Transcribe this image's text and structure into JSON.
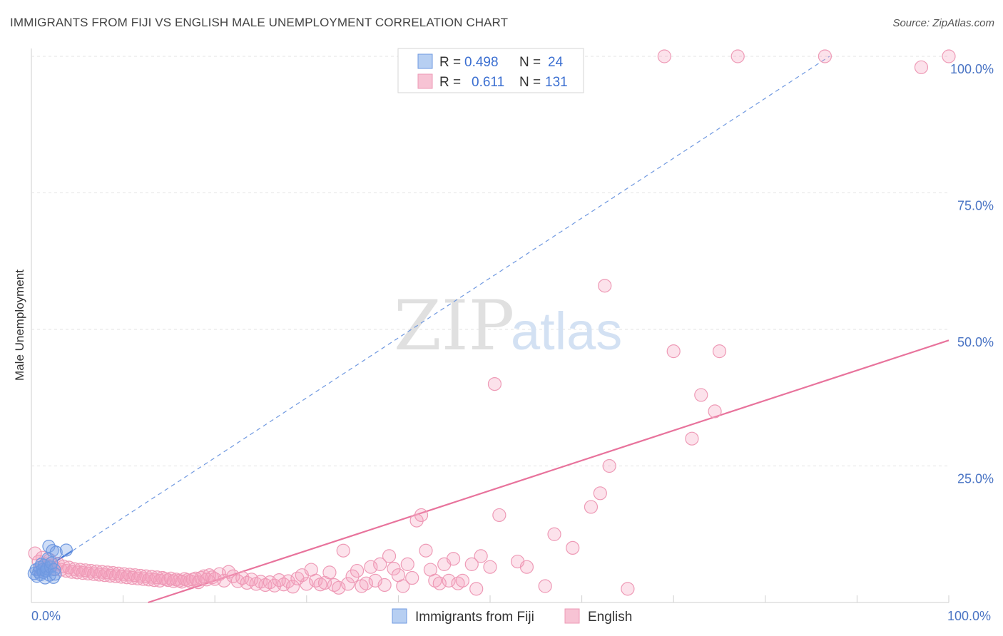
{
  "title": "IMMIGRANTS FROM FIJI VS ENGLISH MALE UNEMPLOYMENT CORRELATION CHART",
  "source": "Source: ZipAtlas.com",
  "watermark": {
    "zip": "ZIP",
    "atlas": "atlas"
  },
  "colors": {
    "fiji": "#6f98e0",
    "english": "#e8739c",
    "accent": "#4a74c4"
  },
  "legend": {
    "r_label": "R =",
    "n_label": "N =",
    "series": [
      {
        "r": "0.498",
        "n": "24"
      },
      {
        "r": "0.611",
        "n": "131"
      }
    ]
  },
  "chart_data": {
    "type": "scatter",
    "title": "IMMIGRANTS FROM FIJI VS ENGLISH MALE UNEMPLOYMENT CORRELATION CHART",
    "xlabel": "",
    "ylabel": "Male Unemployment",
    "xlim": [
      0,
      100
    ],
    "ylim": [
      0,
      100
    ],
    "x_tick_labels": [
      "0.0%",
      "100.0%"
    ],
    "y_ticks": [
      25,
      50,
      75,
      100
    ],
    "y_tick_labels": [
      "25.0%",
      "50.0%",
      "75.0%",
      "100.0%"
    ],
    "legend_position": "top-center",
    "series": [
      {
        "name": "Immigrants from Fiji",
        "r": 0.498,
        "n": 24,
        "trend": {
          "x0": 0.3,
          "y0": 5.0,
          "x1": 4.5,
          "y1": 9.5
        },
        "trend_extension": {
          "x0": 4.5,
          "y0": 9.5,
          "x1": 87,
          "y1": 100
        },
        "points": [
          [
            0.3,
            5.3
          ],
          [
            0.5,
            6.0
          ],
          [
            0.6,
            4.8
          ],
          [
            0.8,
            5.6
          ],
          [
            0.9,
            6.4
          ],
          [
            1.0,
            5.1
          ],
          [
            1.1,
            7.0
          ],
          [
            1.2,
            6.0
          ],
          [
            1.3,
            5.5
          ],
          [
            1.4,
            6.8
          ],
          [
            1.5,
            4.5
          ],
          [
            1.6,
            5.8
          ],
          [
            1.7,
            6.2
          ],
          [
            1.8,
            8.0
          ],
          [
            1.9,
            10.3
          ],
          [
            2.0,
            5.0
          ],
          [
            2.1,
            6.5
          ],
          [
            2.2,
            7.2
          ],
          [
            2.3,
            9.5
          ],
          [
            2.4,
            4.6
          ],
          [
            2.5,
            6.0
          ],
          [
            2.6,
            5.2
          ],
          [
            2.7,
            9.2
          ],
          [
            3.8,
            9.6
          ]
        ]
      },
      {
        "name": "English",
        "r": 0.611,
        "n": 131,
        "trend": {
          "x0": 0,
          "y0": -7,
          "x1": 100,
          "y1": 48
        },
        "points": [
          [
            0.4,
            9.0
          ],
          [
            0.8,
            7.5
          ],
          [
            1.0,
            6.0
          ],
          [
            1.2,
            8.2
          ],
          [
            1.5,
            7.0
          ],
          [
            1.8,
            6.5
          ],
          [
            2.0,
            7.8
          ],
          [
            2.3,
            6.8
          ],
          [
            2.6,
            6.2
          ],
          [
            2.9,
            7.1
          ],
          [
            3.2,
            6.0
          ],
          [
            3.5,
            6.6
          ],
          [
            3.8,
            5.8
          ],
          [
            4.1,
            6.4
          ],
          [
            4.4,
            5.6
          ],
          [
            4.7,
            6.1
          ],
          [
            5.0,
            5.5
          ],
          [
            5.3,
            6.0
          ],
          [
            5.6,
            5.4
          ],
          [
            5.9,
            5.9
          ],
          [
            6.2,
            5.3
          ],
          [
            6.5,
            5.8
          ],
          [
            6.8,
            5.2
          ],
          [
            7.1,
            5.7
          ],
          [
            7.4,
            5.1
          ],
          [
            7.7,
            5.6
          ],
          [
            8.0,
            5.0
          ],
          [
            8.3,
            5.5
          ],
          [
            8.6,
            4.9
          ],
          [
            8.9,
            5.4
          ],
          [
            9.2,
            4.8
          ],
          [
            9.5,
            5.3
          ],
          [
            9.8,
            4.7
          ],
          [
            10.1,
            5.2
          ],
          [
            10.4,
            4.6
          ],
          [
            10.7,
            5.1
          ],
          [
            11.0,
            4.5
          ],
          [
            11.3,
            5.0
          ],
          [
            11.6,
            4.4
          ],
          [
            11.9,
            4.9
          ],
          [
            12.2,
            4.3
          ],
          [
            12.5,
            4.8
          ],
          [
            12.8,
            4.2
          ],
          [
            13.1,
            4.7
          ],
          [
            13.4,
            4.1
          ],
          [
            13.7,
            4.6
          ],
          [
            14.0,
            4.0
          ],
          [
            14.3,
            4.5
          ],
          [
            14.6,
            4.3
          ],
          [
            14.9,
            4.1
          ],
          [
            15.2,
            4.4
          ],
          [
            15.5,
            3.9
          ],
          [
            15.8,
            4.2
          ],
          [
            16.1,
            4.0
          ],
          [
            16.4,
            3.8
          ],
          [
            16.7,
            4.3
          ],
          [
            17.0,
            4.1
          ],
          [
            17.3,
            3.9
          ],
          [
            17.6,
            4.2
          ],
          [
            17.9,
            4.4
          ],
          [
            18.2,
            3.7
          ],
          [
            18.5,
            4.5
          ],
          [
            18.8,
            4.8
          ],
          [
            19.1,
            4.2
          ],
          [
            19.4,
            5.0
          ],
          [
            19.7,
            4.6
          ],
          [
            20.0,
            4.3
          ],
          [
            20.5,
            5.2
          ],
          [
            21.0,
            4.0
          ],
          [
            21.5,
            5.6
          ],
          [
            22.0,
            4.8
          ],
          [
            22.5,
            3.9
          ],
          [
            23.0,
            4.5
          ],
          [
            23.5,
            3.6
          ],
          [
            24.0,
            4.2
          ],
          [
            24.5,
            3.4
          ],
          [
            25.0,
            3.8
          ],
          [
            25.5,
            3.2
          ],
          [
            26.0,
            3.7
          ],
          [
            26.5,
            3.1
          ],
          [
            27.0,
            4.1
          ],
          [
            27.5,
            3.3
          ],
          [
            28.0,
            3.9
          ],
          [
            28.5,
            2.9
          ],
          [
            29.0,
            4.4
          ],
          [
            29.5,
            5.0
          ],
          [
            30.0,
            3.4
          ],
          [
            30.5,
            6.0
          ],
          [
            31.0,
            4.0
          ],
          [
            31.5,
            3.3
          ],
          [
            32.0,
            3.6
          ],
          [
            32.5,
            5.5
          ],
          [
            33.0,
            3.2
          ],
          [
            33.5,
            2.7
          ],
          [
            34.0,
            9.5
          ],
          [
            34.5,
            3.4
          ],
          [
            35.0,
            4.8
          ],
          [
            35.5,
            5.8
          ],
          [
            36.0,
            3.0
          ],
          [
            36.5,
            3.5
          ],
          [
            37.0,
            6.5
          ],
          [
            37.5,
            4.0
          ],
          [
            38.0,
            7.0
          ],
          [
            38.5,
            3.2
          ],
          [
            39.0,
            8.5
          ],
          [
            39.5,
            6.2
          ],
          [
            40.0,
            5.0
          ],
          [
            40.5,
            3.0
          ],
          [
            41.0,
            7.0
          ],
          [
            41.5,
            4.5
          ],
          [
            42.0,
            15.0
          ],
          [
            42.5,
            16.0
          ],
          [
            43.0,
            9.5
          ],
          [
            43.5,
            6.0
          ],
          [
            44.0,
            4.0
          ],
          [
            44.5,
            3.5
          ],
          [
            45.0,
            7.0
          ],
          [
            45.5,
            4.0
          ],
          [
            46.0,
            8.0
          ],
          [
            46.5,
            3.5
          ],
          [
            47.0,
            4.0
          ],
          [
            48.0,
            7.0
          ],
          [
            48.5,
            2.5
          ],
          [
            49.0,
            8.5
          ],
          [
            50.0,
            6.5
          ],
          [
            50.5,
            40.0
          ],
          [
            51.0,
            16.0
          ],
          [
            53.0,
            7.5
          ],
          [
            54.0,
            6.5
          ],
          [
            56.0,
            3.0
          ],
          [
            57.0,
            12.5
          ],
          [
            59.0,
            10.0
          ],
          [
            61.0,
            17.5
          ],
          [
            62.0,
            20.0
          ],
          [
            62.5,
            58.0
          ],
          [
            63.0,
            25.0
          ],
          [
            65.0,
            2.5
          ]
        ]
      }
    ]
  }
}
